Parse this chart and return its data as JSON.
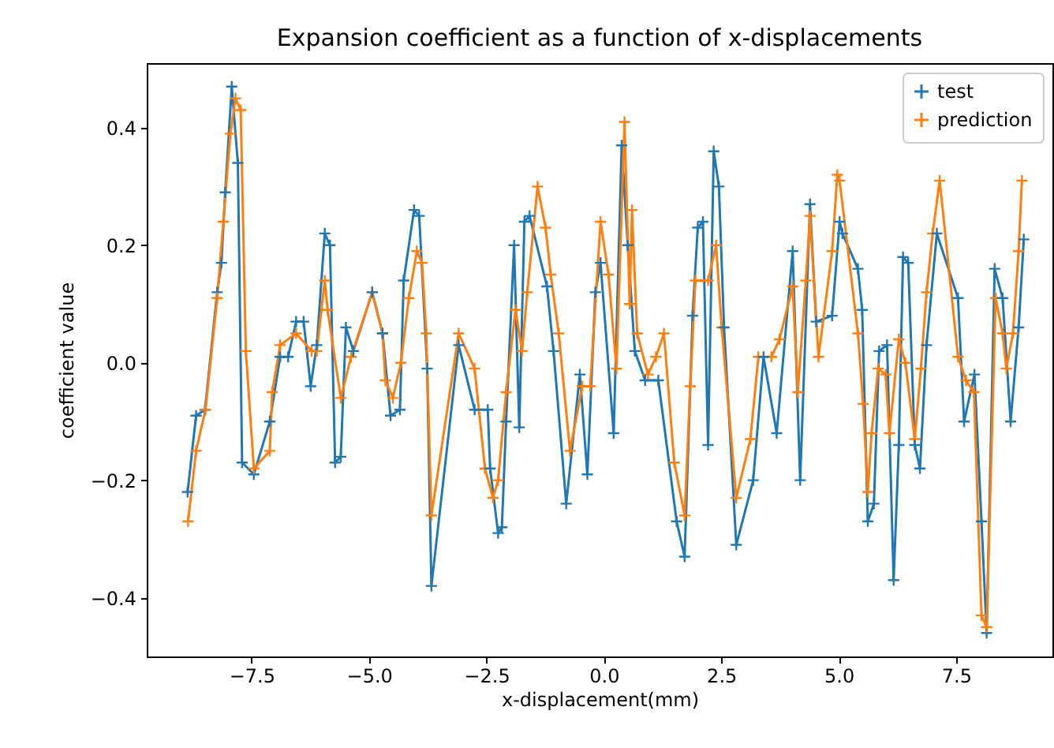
{
  "chart_data": {
    "type": "line",
    "title": "Expansion coefficient as a function of x-displacements",
    "xlabel": "x-displacement(mm)",
    "ylabel": "coefficient value",
    "xlim": [
      -9.73,
      9.55
    ],
    "ylim": [
      -0.5,
      0.51
    ],
    "xticks": [
      {
        "value": -7.5,
        "label": "−7.5"
      },
      {
        "value": -5,
        "label": "−5.0"
      },
      {
        "value": -2.5,
        "label": "−2.5"
      },
      {
        "value": 0,
        "label": "0.0"
      },
      {
        "value": 2.5,
        "label": "2.5"
      },
      {
        "value": 5,
        "label": "5.0"
      },
      {
        "value": 7.5,
        "label": "7.5"
      }
    ],
    "yticks": [
      {
        "value": -0.4,
        "label": "−0.4"
      },
      {
        "value": -0.2,
        "label": "−0.2"
      },
      {
        "value": 0,
        "label": "0.0"
      },
      {
        "value": 0.2,
        "label": "0.2"
      },
      {
        "value": 0.4,
        "label": "0.4"
      }
    ],
    "grid": false,
    "legend": "top right",
    "marker": "cross",
    "line_style": "solid",
    "series": [
      {
        "name": "test",
        "color": "#1f77b4",
        "x": [
          -8.86,
          -8.68,
          -8.49,
          -8.23,
          -8.14,
          -8.06,
          -7.92,
          -7.79,
          -7.7,
          -7.45,
          -7.11,
          -6.89,
          -6.72,
          -6.55,
          -6.39,
          -6.24,
          -6.11,
          -5.94,
          -5.83,
          -5.72,
          -5.6,
          -5.49,
          -5.33,
          -4.93,
          -4.71,
          -4.54,
          -4.34,
          -4.26,
          -4.04,
          -3.93,
          -3.76,
          -3.67,
          -3.09,
          -2.75,
          -2.47,
          -2.42,
          -2.25,
          -2.17,
          -2.08,
          -1.91,
          -1.8,
          -1.69,
          -1.58,
          -1.21,
          -1.07,
          -0.8,
          -0.51,
          -0.35,
          -0.18,
          -0.07,
          0.21,
          0.38,
          0.51,
          0.66,
          0.88,
          1.16,
          1.55,
          1.72,
          1.89,
          2.0,
          2.11,
          2.22,
          2.34,
          2.45,
          2.56,
          2.82,
          3.18,
          3.4,
          3.68,
          4.02,
          4.18,
          4.39,
          4.52,
          4.86,
          5.02,
          5.08,
          5.41,
          5.5,
          5.62,
          5.75,
          5.86,
          6.03,
          6.17,
          6.28,
          6.37,
          6.48,
          6.62,
          6.73,
          6.87,
          7.09,
          7.54,
          7.67,
          7.89,
          8.04,
          8.15,
          8.32,
          8.49,
          8.66,
          8.83,
          8.94
        ],
        "values": [
          -0.22,
          -0.09,
          -0.08,
          0.12,
          0.17,
          0.29,
          0.47,
          0.34,
          -0.17,
          -0.19,
          -0.1,
          0.01,
          0.01,
          0.07,
          0.07,
          -0.04,
          0.03,
          0.22,
          0.2,
          -0.17,
          -0.16,
          0.06,
          0.02,
          0.12,
          0.05,
          -0.09,
          -0.08,
          0.14,
          0.26,
          0.25,
          -0.01,
          -0.38,
          0.03,
          -0.08,
          -0.08,
          -0.18,
          -0.29,
          -0.28,
          -0.1,
          0.2,
          -0.11,
          0.24,
          0.25,
          0.13,
          0.02,
          -0.24,
          -0.02,
          -0.19,
          0.12,
          0.17,
          -0.12,
          0.37,
          0.2,
          0.02,
          -0.03,
          -0.03,
          -0.27,
          -0.33,
          0.08,
          0.23,
          0.24,
          -0.14,
          0.36,
          0.3,
          0.06,
          -0.31,
          -0.2,
          0.01,
          -0.12,
          0.19,
          -0.2,
          0.27,
          0.07,
          0.08,
          0.24,
          0.22,
          0.16,
          0.09,
          -0.27,
          -0.24,
          0.02,
          0.03,
          -0.37,
          -0.14,
          0.18,
          0.17,
          -0.14,
          -0.18,
          0.03,
          0.22,
          0.11,
          -0.1,
          -0.02,
          -0.27,
          -0.46,
          0.16,
          0.11,
          -0.1,
          0.06,
          0.21
        ]
      },
      {
        "name": "prediction",
        "color": "#ff7f0e",
        "x": [
          -8.85,
          -8.68,
          -8.48,
          -8.23,
          -8.1,
          -7.95,
          -7.84,
          -7.73,
          -7.62,
          -7.45,
          -7.11,
          -7.06,
          -6.89,
          -6.55,
          -6.22,
          -6.11,
          -5.94,
          -5.88,
          -5.6,
          -5.38,
          -4.93,
          -4.71,
          -4.65,
          -4.49,
          -4.32,
          -4.15,
          -3.98,
          -3.87,
          -3.78,
          -3.67,
          -3.09,
          -2.75,
          -2.53,
          -2.36,
          -2.25,
          -2.08,
          -1.88,
          -1.74,
          -1.63,
          -1.41,
          -1.24,
          -1.13,
          -0.96,
          -0.72,
          -0.46,
          -0.29,
          -0.07,
          0.1,
          0.27,
          0.44,
          0.55,
          0.6,
          0.71,
          0.94,
          1.11,
          1.28,
          1.5,
          1.72,
          1.84,
          1.95,
          2.22,
          2.39,
          2.51,
          2.82,
          3.12,
          3.29,
          3.57,
          3.74,
          4.02,
          4.13,
          4.3,
          4.39,
          4.57,
          4.86,
          4.97,
          5.02,
          5.41,
          5.52,
          5.62,
          5.7,
          5.84,
          6.0,
          6.08,
          6.28,
          6.42,
          6.62,
          6.75,
          6.87,
          7.0,
          7.15,
          7.54,
          7.71,
          7.88,
          8.04,
          8.15,
          8.34,
          8.49,
          8.57,
          8.71,
          8.83,
          8.9
        ],
        "values": [
          -0.27,
          -0.15,
          -0.08,
          0.11,
          0.24,
          0.39,
          0.45,
          0.43,
          0.02,
          -0.18,
          -0.15,
          -0.05,
          0.03,
          0.05,
          0.02,
          0.02,
          0.14,
          0.09,
          -0.06,
          0.01,
          0.12,
          0.05,
          -0.03,
          -0.06,
          0.0,
          0.11,
          0.19,
          0.17,
          0.05,
          -0.26,
          0.05,
          -0.01,
          -0.18,
          -0.23,
          -0.2,
          -0.05,
          0.09,
          0.02,
          0.12,
          0.3,
          0.23,
          0.15,
          0.05,
          -0.15,
          -0.04,
          -0.04,
          0.24,
          0.15,
          -0.01,
          0.41,
          0.1,
          0.26,
          0.05,
          -0.02,
          0.01,
          0.05,
          -0.17,
          -0.26,
          -0.04,
          0.14,
          0.14,
          0.2,
          0.06,
          -0.23,
          -0.13,
          0.01,
          0.01,
          0.04,
          0.13,
          -0.05,
          0.14,
          0.25,
          0.01,
          0.19,
          0.32,
          0.31,
          0.05,
          -0.07,
          -0.22,
          -0.12,
          -0.01,
          -0.02,
          -0.12,
          0.04,
          0.0,
          -0.13,
          -0.01,
          0.12,
          0.22,
          0.31,
          0.01,
          -0.03,
          -0.05,
          -0.43,
          -0.45,
          0.11,
          0.05,
          -0.01,
          0.05,
          0.19,
          0.31
        ]
      }
    ]
  }
}
